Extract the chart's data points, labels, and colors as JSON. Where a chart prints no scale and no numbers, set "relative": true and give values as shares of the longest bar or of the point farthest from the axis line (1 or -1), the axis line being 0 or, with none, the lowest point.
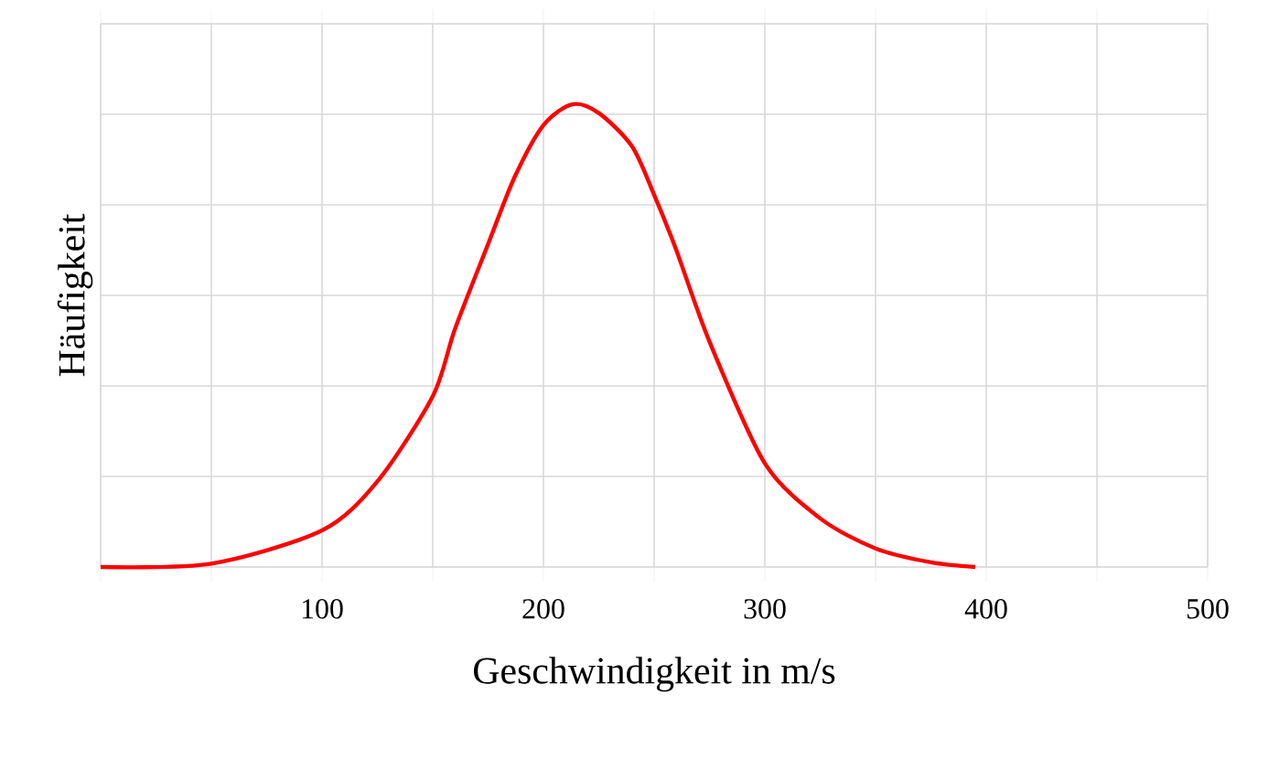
{
  "chart_data": {
    "type": "line",
    "xlabel": "Geschwindigkeit in m/s",
    "ylabel": "Häufigkeit",
    "relative": true,
    "xlim": [
      0,
      500
    ],
    "xticks": [
      {
        "value": 0,
        "label": null
      },
      {
        "value": 50,
        "label": null
      },
      100,
      {
        "value": 150,
        "label": null
      },
      200,
      {
        "value": 250,
        "label": null
      },
      300,
      {
        "value": 350,
        "label": null
      },
      400,
      {
        "value": 450,
        "label": null
      },
      500
    ],
    "grid": true,
    "marker": "none",
    "line_style": "solid",
    "series": [
      {
        "color": "#ff0000",
        "x": [
          0,
          50,
          100,
          125,
          150,
          160,
          175,
          187,
          200,
          213,
          225,
          240,
          250,
          260,
          275,
          300,
          325,
          350,
          375,
          395
        ],
        "values": [
          0,
          0.007,
          0.079,
          0.185,
          0.369,
          0.514,
          0.698,
          0.843,
          0.955,
          1.0,
          0.981,
          0.909,
          0.804,
          0.685,
          0.487,
          0.224,
          0.105,
          0.04,
          0.01,
          0
        ]
      }
    ]
  }
}
